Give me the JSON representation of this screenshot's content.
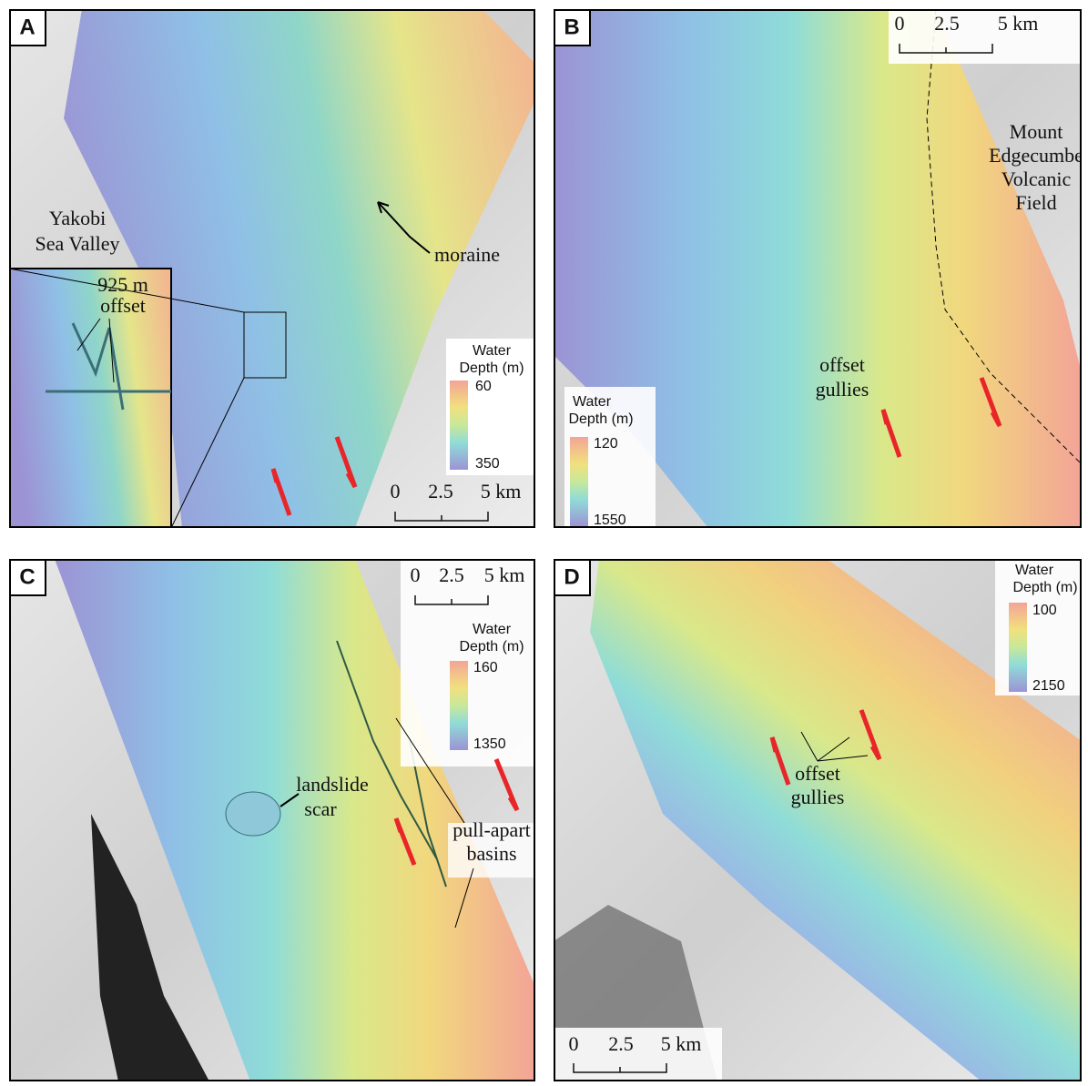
{
  "panels": [
    {
      "label": "A",
      "place_label": [
        "Yakobi",
        "Sea Valley"
      ],
      "inset_label": [
        "925 m",
        "offset"
      ],
      "feature_label": "moraine",
      "legend": {
        "title": [
          "Water",
          "Depth (m)"
        ],
        "top": "60",
        "bottom": "350"
      },
      "scale": [
        "0",
        "2.5",
        "5 km"
      ]
    },
    {
      "label": "B",
      "place_label": [
        "Mount",
        "Edgecumbe",
        "Volcanic",
        "Field"
      ],
      "feature_label": [
        "offset",
        "gullies"
      ],
      "legend": {
        "title": [
          "Water",
          "Depth (m)"
        ],
        "top": "120",
        "bottom": "1550"
      },
      "scale": [
        "0",
        "2.5",
        "5 km"
      ]
    },
    {
      "label": "C",
      "feature_label": [
        "pull-apart",
        "basins"
      ],
      "feature_label_2": [
        "landslide",
        "scar"
      ],
      "legend": {
        "title": [
          "Water",
          "Depth (m)"
        ],
        "top": "160",
        "bottom": "1350"
      },
      "scale": [
        "0",
        "2.5",
        "5 km"
      ]
    },
    {
      "label": "D",
      "feature_label": [
        "offset",
        "gullies"
      ],
      "legend": {
        "title": [
          "Water",
          "Depth (m)"
        ],
        "top": "100",
        "bottom": "2150"
      },
      "scale": [
        "0",
        "2.5",
        "5 km"
      ]
    }
  ]
}
